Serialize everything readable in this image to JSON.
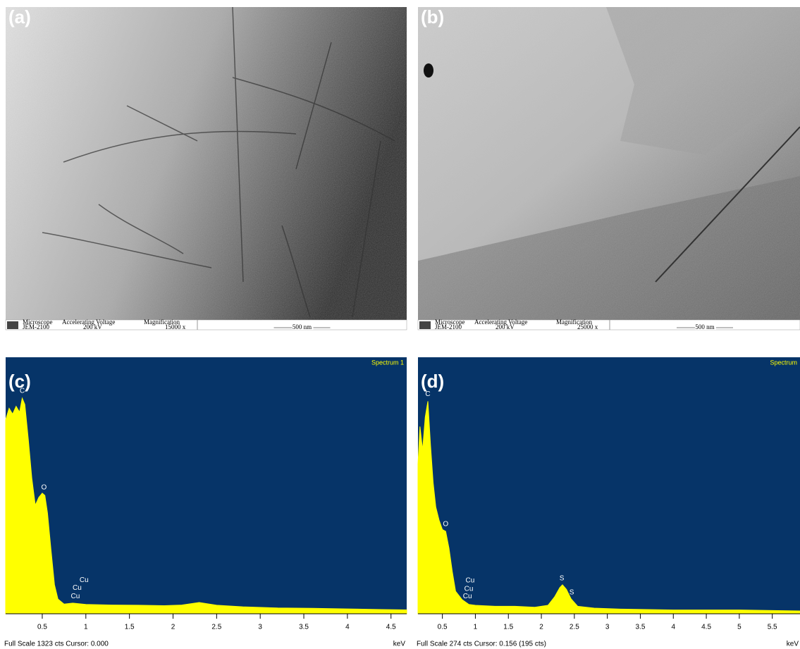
{
  "images": [
    {
      "label": "(a)",
      "info": {
        "headers": [
          "Microscope",
          "Accelerating Voltage",
          "Magnification"
        ],
        "cells": [
          "JEM-2100",
          "200 kV",
          "15000 x"
        ],
        "scale": "500 nm"
      }
    },
    {
      "label": "(b)",
      "info": {
        "headers": [
          "Microscope",
          "Accelerating Voltage",
          "Magnification"
        ],
        "cells": [
          "JEM-2100",
          "200 kV",
          "25000 x"
        ],
        "scale": "500 nm"
      }
    }
  ],
  "chart_data": [
    {
      "type": "area",
      "label": "(c)",
      "title": "Spectrum 1",
      "footer": "Full Scale 1323 cts Cursor: 0.000",
      "x_unit": "keV",
      "color": "#ffff00",
      "background": "#063468",
      "x": [
        0.08,
        0.12,
        0.16,
        0.2,
        0.24,
        0.27,
        0.3,
        0.34,
        0.38,
        0.42,
        0.46,
        0.5,
        0.53,
        0.56,
        0.6,
        0.64,
        0.68,
        0.75,
        0.85,
        1.0,
        1.3,
        1.6,
        1.9,
        2.1,
        2.3,
        2.5,
        2.8,
        3.2,
        3.6,
        4.0,
        4.4,
        4.68
      ],
      "values": [
        1000,
        1060,
        1030,
        1070,
        1040,
        1112,
        1080,
        900,
        700,
        560,
        600,
        622,
        610,
        520,
        330,
        150,
        76,
        50,
        55,
        48,
        45,
        44,
        42,
        45,
        58,
        44,
        36,
        30,
        28,
        25,
        22,
        20
      ],
      "xlim": [
        0.08,
        4.68
      ],
      "ylim": [
        0,
        1323
      ],
      "xticks": [
        0.5,
        1,
        1.5,
        2,
        2.5,
        3,
        3.5,
        4,
        4.5
      ],
      "peak_labels": [
        {
          "label": "C",
          "x": 0.27
        },
        {
          "label": "O",
          "x": 0.52
        },
        {
          "label": "Cu",
          "x": 0.88
        },
        {
          "label": "Cu",
          "x": 0.9
        },
        {
          "label": "Cu",
          "x": 0.98
        }
      ]
    },
    {
      "type": "area",
      "label": "(d)",
      "title": "Spectrum",
      "footer": "Full Scale 274 cts Cursor: 0.156 (195 cts)",
      "x_unit": "keV",
      "color": "#ffff00",
      "background": "#063468",
      "x": [
        0.13,
        0.16,
        0.2,
        0.24,
        0.28,
        0.32,
        0.36,
        0.4,
        0.45,
        0.5,
        0.55,
        0.6,
        0.65,
        0.7,
        0.8,
        0.9,
        1.0,
        1.3,
        1.6,
        1.9,
        2.1,
        2.2,
        2.28,
        2.32,
        2.38,
        2.45,
        2.55,
        2.8,
        3.2,
        4,
        5,
        5.92
      ],
      "values": [
        160,
        200,
        175,
        210,
        227,
        180,
        140,
        114,
        100,
        90,
        88,
        70,
        45,
        24,
        15,
        10,
        9,
        8,
        8,
        7,
        9,
        18,
        28,
        31,
        26,
        16,
        8,
        6,
        5,
        4,
        4,
        3
      ],
      "xlim": [
        0.13,
        5.92
      ],
      "ylim": [
        0,
        274
      ],
      "xticks": [
        0.5,
        1,
        1.5,
        2,
        2.5,
        3,
        3.5,
        4,
        4.5,
        5,
        5.5
      ],
      "peak_labels": [
        {
          "label": "C",
          "x": 0.28
        },
        {
          "label": "O",
          "x": 0.55
        },
        {
          "label": "Cu",
          "x": 0.88
        },
        {
          "label": "Cu",
          "x": 0.9
        },
        {
          "label": "Cu",
          "x": 0.92
        },
        {
          "label": "S",
          "x": 2.31
        },
        {
          "label": "S",
          "x": 2.46
        }
      ]
    }
  ]
}
